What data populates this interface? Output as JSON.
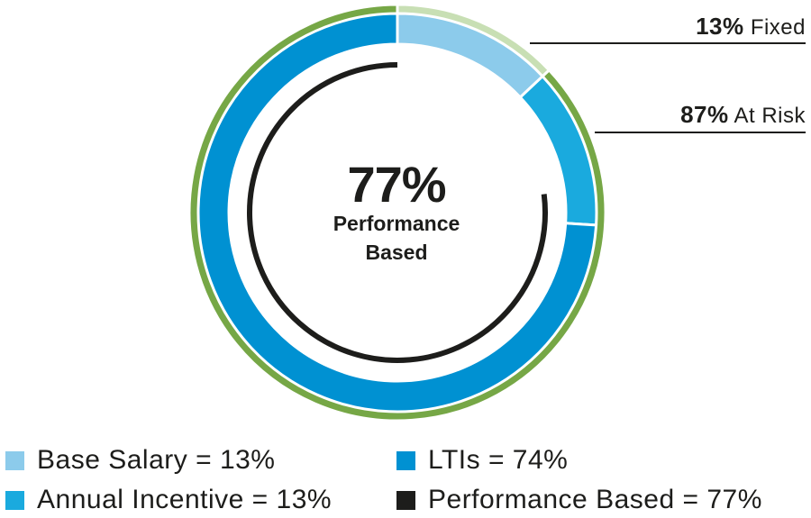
{
  "chart_data": {
    "type": "pie",
    "inner_ring": {
      "categories": [
        "Base Salary",
        "Annual Incentive",
        "LTIs"
      ],
      "values": [
        13,
        13,
        74
      ],
      "colors": [
        "#8ccbeb",
        "#1aaade",
        "#0091d2"
      ]
    },
    "outer_ring": {
      "categories": [
        "Fixed",
        "At Risk"
      ],
      "values": [
        13,
        87
      ],
      "colors": [
        "#c8dfb4",
        "#76a746"
      ]
    },
    "performance_arc": {
      "value": 77,
      "color": "#1d1d1b"
    },
    "center": {
      "value": "77%",
      "label_line1": "Performance",
      "label_line2": "Based"
    },
    "callouts": [
      {
        "value": "13%",
        "label": "Fixed"
      },
      {
        "value": "87%",
        "label": "At Risk"
      }
    ],
    "legend": [
      {
        "text": "Base Salary = 13%",
        "color": "#8ccbeb"
      },
      {
        "text": "LTIs = 74%",
        "color": "#0091d2"
      },
      {
        "text": "Annual Incentive = 13%",
        "color": "#1aaade"
      },
      {
        "text": "Performance Based = 77%",
        "color": "#1d1d1b"
      }
    ],
    "legend_placement": "bottom"
  }
}
